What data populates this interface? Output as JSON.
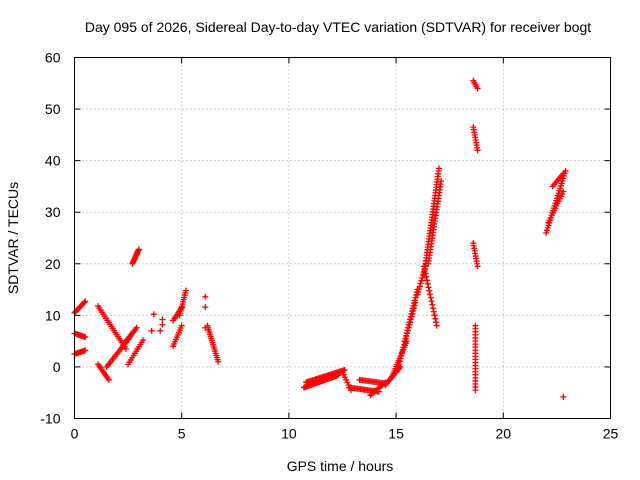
{
  "chart_data": {
    "type": "scatter",
    "title": "Day 095 of 2026, Sidereal Day-to-day VTEC variation (SDTVAR) for receiver bogt",
    "xlabel": "GPS time / hours",
    "ylabel": "SDTVAR / TECUs",
    "xlim": [
      0,
      25
    ],
    "ylim": [
      -10,
      60
    ],
    "xticks": [
      0,
      5,
      10,
      15,
      20,
      25
    ],
    "yticks": [
      -10,
      0,
      10,
      20,
      30,
      40,
      50,
      60
    ],
    "grid": true,
    "marker": "+",
    "color": "#ff0000",
    "segments": [
      {
        "x0": 0.0,
        "y0": 2.5,
        "x1": 0.5,
        "y1": 3.2,
        "n": 10
      },
      {
        "x0": 0.0,
        "y0": 6.5,
        "x1": 0.5,
        "y1": 5.8,
        "n": 10
      },
      {
        "x0": 0.0,
        "y0": 10.5,
        "x1": 0.5,
        "y1": 12.7,
        "n": 12
      },
      {
        "x0": 1.1,
        "y0": 11.8,
        "x1": 2.4,
        "y1": 3.5,
        "n": 22
      },
      {
        "x0": 1.1,
        "y0": 0.5,
        "x1": 1.6,
        "y1": -2.5,
        "n": 10
      },
      {
        "x0": 1.5,
        "y0": 0.0,
        "x1": 2.6,
        "y1": 5.8,
        "n": 18
      },
      {
        "x0": 2.4,
        "y0": 5.0,
        "x1": 2.9,
        "y1": 7.6,
        "n": 10
      },
      {
        "x0": 2.5,
        "y0": 0.5,
        "x1": 3.2,
        "y1": 5.2,
        "n": 12
      },
      {
        "x0": 2.7,
        "y0": 20.0,
        "x1": 3.0,
        "y1": 22.8,
        "n": 14
      },
      {
        "x0": 4.6,
        "y0": 4.0,
        "x1": 5.0,
        "y1": 8.0,
        "n": 10
      },
      {
        "x0": 4.6,
        "y0": 9.0,
        "x1": 5.0,
        "y1": 11.5,
        "n": 8
      },
      {
        "x0": 4.9,
        "y0": 10.0,
        "x1": 5.2,
        "y1": 14.8,
        "n": 12
      },
      {
        "x0": 6.2,
        "y0": 8.0,
        "x1": 6.7,
        "y1": 1.0,
        "n": 18
      },
      {
        "x0": 10.7,
        "y0": -4.0,
        "x1": 12.3,
        "y1": -1.6,
        "n": 30
      },
      {
        "x0": 10.8,
        "y0": -3.0,
        "x1": 12.6,
        "y1": -0.6,
        "n": 30
      },
      {
        "x0": 12.5,
        "y0": -1.0,
        "x1": 12.9,
        "y1": -4.5,
        "n": 8
      },
      {
        "x0": 12.8,
        "y0": -4.0,
        "x1": 14.2,
        "y1": -4.8,
        "n": 22
      },
      {
        "x0": 13.3,
        "y0": -2.5,
        "x1": 14.5,
        "y1": -3.2,
        "n": 18
      },
      {
        "x0": 13.8,
        "y0": -5.5,
        "x1": 14.5,
        "y1": -3.0,
        "n": 12
      },
      {
        "x0": 14.5,
        "y0": -3.5,
        "x1": 15.2,
        "y1": 0.0,
        "n": 14
      },
      {
        "x0": 14.8,
        "y0": -2.0,
        "x1": 15.5,
        "y1": 5.0,
        "n": 18
      },
      {
        "x0": 15.1,
        "y0": 0.0,
        "x1": 15.9,
        "y1": 12.5,
        "n": 24
      },
      {
        "x0": 15.4,
        "y0": 5.0,
        "x1": 16.0,
        "y1": 15.0,
        "n": 20
      },
      {
        "x0": 16.0,
        "y0": 14.0,
        "x1": 16.4,
        "y1": 20.0,
        "n": 12
      },
      {
        "x0": 16.3,
        "y0": 18.0,
        "x1": 17.0,
        "y1": 38.5,
        "n": 40
      },
      {
        "x0": 16.5,
        "y0": 20.0,
        "x1": 17.1,
        "y1": 36.0,
        "n": 30
      },
      {
        "x0": 16.3,
        "y0": 19.5,
        "x1": 16.9,
        "y1": 8.0,
        "n": 18
      },
      {
        "x0": 18.6,
        "y0": 55.5,
        "x1": 18.8,
        "y1": 54.0,
        "n": 5
      },
      {
        "x0": 18.6,
        "y0": 46.5,
        "x1": 18.8,
        "y1": 42.0,
        "n": 10
      },
      {
        "x0": 18.6,
        "y0": 24.0,
        "x1": 18.8,
        "y1": 19.5,
        "n": 10
      },
      {
        "x0": 18.7,
        "y0": 8.0,
        "x1": 18.7,
        "y1": -4.5,
        "n": 22
      },
      {
        "x0": 22.0,
        "y0": 26.0,
        "x1": 22.9,
        "y1": 38.0,
        "n": 26
      },
      {
        "x0": 22.1,
        "y0": 28.0,
        "x1": 22.8,
        "y1": 34.0,
        "n": 14
      },
      {
        "x0": 22.3,
        "y0": 35.0,
        "x1": 22.8,
        "y1": 37.5,
        "n": 8
      }
    ],
    "points": [
      {
        "x": 3.6,
        "y": 7.0
      },
      {
        "x": 3.7,
        "y": 10.2
      },
      {
        "x": 4.0,
        "y": 7.0
      },
      {
        "x": 4.1,
        "y": 8.2
      },
      {
        "x": 4.1,
        "y": 9.2
      },
      {
        "x": 6.1,
        "y": 13.6
      },
      {
        "x": 6.1,
        "y": 11.6
      },
      {
        "x": 6.1,
        "y": 7.6
      },
      {
        "x": 22.8,
        "y": -5.8
      }
    ]
  }
}
